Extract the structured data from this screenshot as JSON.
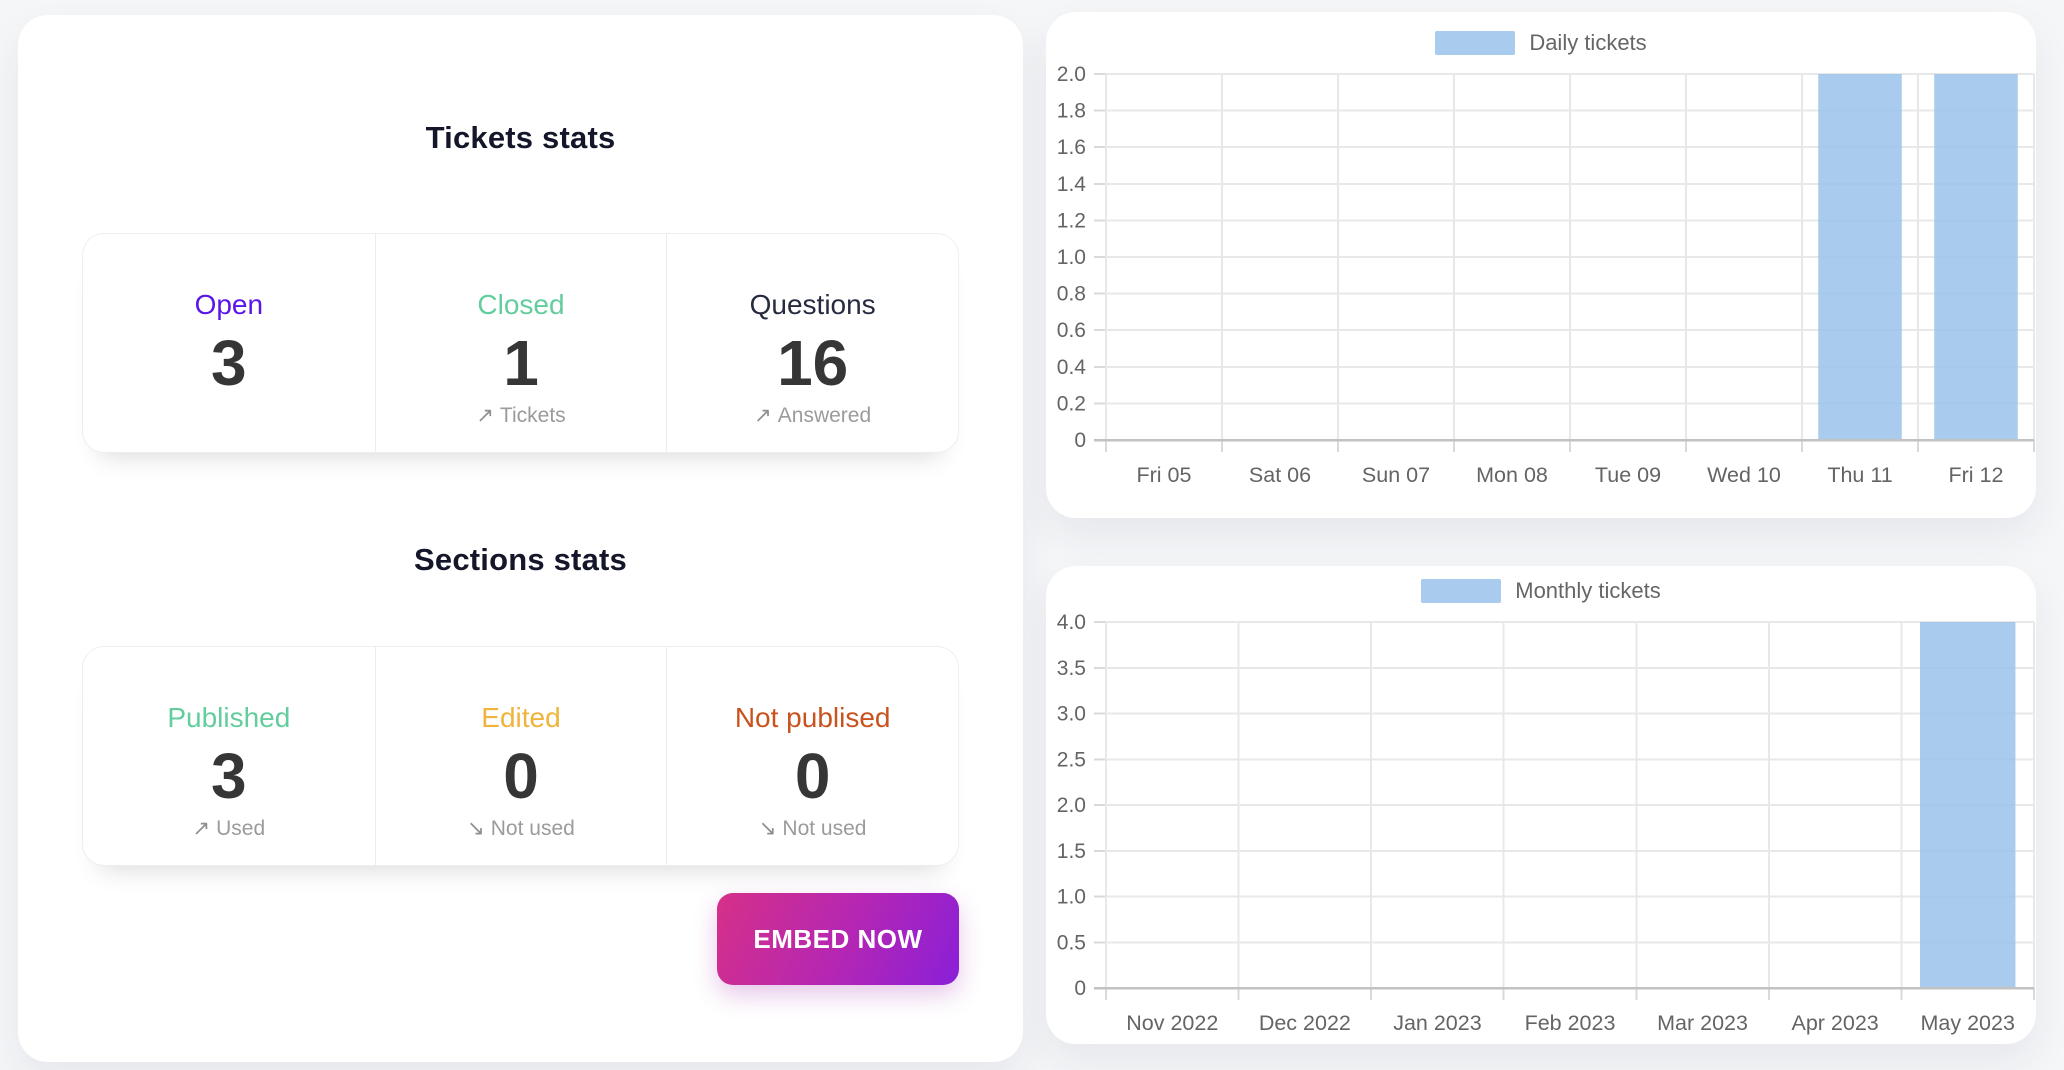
{
  "theme": {
    "page_bg": "#f5f6f8",
    "card_bg": "#ffffff",
    "heading_color": "#14172a",
    "value_color": "#363636",
    "sub_color": "#9b9b9b",
    "bar_color": "#a9cbee",
    "grid_color": "#e8e8e8",
    "axis_color": "#c2c2c2",
    "tick_color": "#d9d9d9",
    "chart_text_color": "#646464",
    "embed_gradient_from": "#d63088",
    "embed_gradient_to": "#8a1fd8"
  },
  "left_panel": {
    "tickets_section": {
      "title": "Tickets stats",
      "cards": [
        {
          "label": "Open",
          "color": "#5a15ea",
          "value": "3",
          "sub_arrow": "",
          "sub_text": ""
        },
        {
          "label": "Closed",
          "color": "#64cd9d",
          "value": "1",
          "sub_arrow": "↗",
          "sub_text": "Tickets"
        },
        {
          "label": "Questions",
          "color": "#272b3f",
          "value": "16",
          "sub_arrow": "↗",
          "sub_text": "Answered"
        }
      ]
    },
    "sections_section": {
      "title": "Sections stats",
      "cards": [
        {
          "label": "Published",
          "color": "#64cd9d",
          "value": "3",
          "sub_arrow": "↗",
          "sub_text": "Used"
        },
        {
          "label": "Edited",
          "color": "#f0b43c",
          "value": "0",
          "sub_arrow": "↘",
          "sub_text": "Not used"
        },
        {
          "label": "Not publised",
          "color": "#c8531f",
          "value": "0",
          "sub_arrow": "↘",
          "sub_text": "Not used"
        }
      ]
    },
    "embed_button_label": "EMBED NOW"
  },
  "chart_data": [
    {
      "type": "bar",
      "title": "Daily tickets",
      "legend": "Daily tickets",
      "legend_position": "top",
      "categories": [
        "Fri 05",
        "Sat 06",
        "Sun 07",
        "Mon 08",
        "Tue 09",
        "Wed 10",
        "Thu 11",
        "Fri 12"
      ],
      "values": [
        0,
        0,
        0,
        0,
        0,
        0,
        2,
        2
      ],
      "xlabel": "",
      "ylabel": "",
      "ylim": [
        0,
        2
      ],
      "y_step": 0.2,
      "y_tick_labels": [
        "2.0",
        "1.8",
        "1.6",
        "1.4",
        "1.2",
        "1.0",
        "0.8",
        "0.6",
        "0.4",
        "0.2",
        "0"
      ],
      "grid": true,
      "bar_color": "#a9cbee"
    },
    {
      "type": "bar",
      "title": "Monthly tickets",
      "legend": "Monthly tickets",
      "legend_position": "top",
      "categories": [
        "Nov 2022",
        "Dec 2022",
        "Jan 2023",
        "Feb 2023",
        "Mar 2023",
        "Apr 2023",
        "May 2023"
      ],
      "values": [
        0,
        0,
        0,
        0,
        0,
        0,
        4
      ],
      "xlabel": "",
      "ylabel": "",
      "ylim": [
        0,
        4
      ],
      "y_step": 0.5,
      "y_tick_labels": [
        "4.0",
        "3.5",
        "3.0",
        "2.5",
        "2.0",
        "1.5",
        "1.0",
        "0.5",
        "0"
      ],
      "grid": true,
      "bar_color": "#a9cbee"
    }
  ]
}
